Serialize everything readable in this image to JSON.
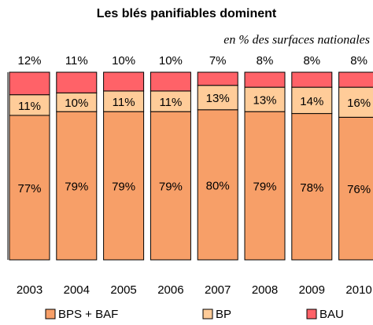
{
  "chart_data": {
    "type": "stacked_bar",
    "title": "Les blés panifiables dominent",
    "subtitle": "en % des surfaces nationales",
    "categories": [
      "2003",
      "2004",
      "2005",
      "2006",
      "2007",
      "2008",
      "2009",
      "2010"
    ],
    "series": [
      {
        "name": "BPS + BAF",
        "color": "#f79f68",
        "values": [
          77,
          79,
          79,
          79,
          80,
          79,
          78,
          76
        ],
        "value_labels": [
          "77%",
          "79%",
          "79%",
          "79%",
          "80%",
          "79%",
          "78%",
          "76%"
        ]
      },
      {
        "name": "BP",
        "color": "#ffcc99",
        "values": [
          11,
          10,
          11,
          11,
          13,
          13,
          14,
          16
        ],
        "value_labels": [
          "11%",
          "10%",
          "11%",
          "11%",
          "13%",
          "13%",
          "14%",
          "16%"
        ]
      },
      {
        "name": "BAU",
        "color": "#ff6268",
        "values": [
          12,
          11,
          10,
          10,
          7,
          8,
          8,
          8
        ],
        "value_labels": [
          "12%",
          "11%",
          "10%",
          "10%",
          "7%",
          "8%",
          "8%",
          "8%"
        ]
      }
    ]
  }
}
